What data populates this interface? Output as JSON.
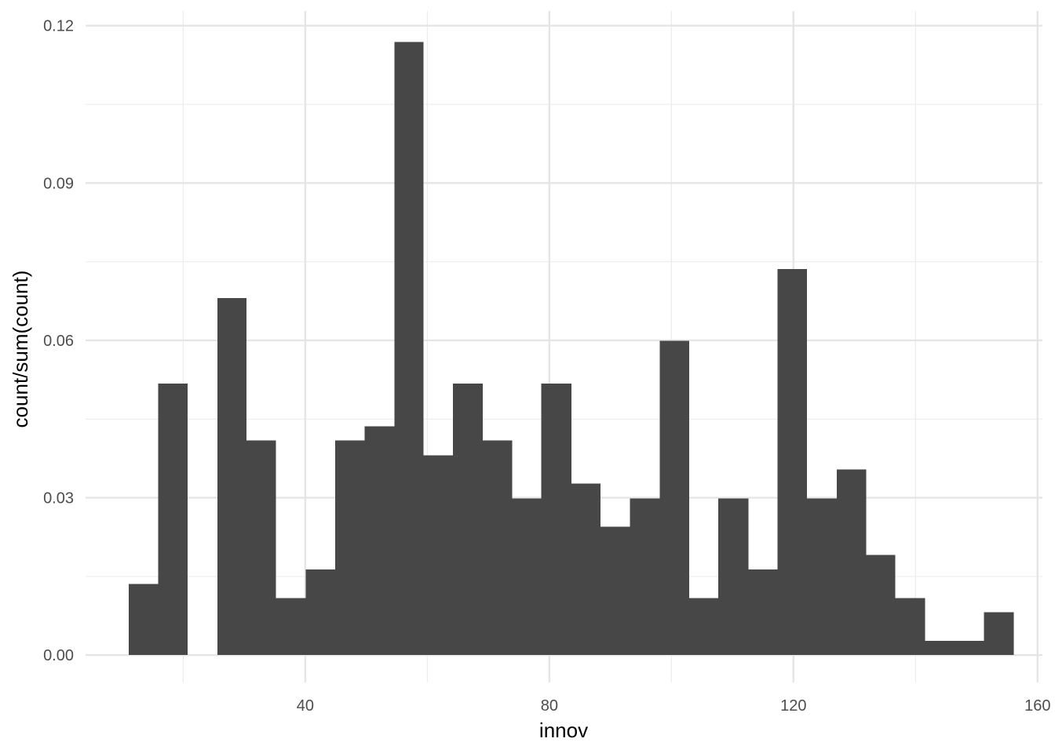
{
  "chart_data": {
    "type": "bar",
    "title": "",
    "xlabel": "innov",
    "ylabel": "count/sum(count)",
    "xlim": [
      4.0,
      160.8
    ],
    "ylim": [
      -0.0052,
      0.1228
    ],
    "grid": true,
    "x_ticks": [
      40,
      80,
      120,
      160
    ],
    "x_tick_labels": [
      "40",
      "80",
      "120",
      "160"
    ],
    "x_minor_ticks": [
      20,
      60,
      100,
      140
    ],
    "y_ticks": [
      0.0,
      0.03,
      0.06,
      0.09,
      0.12
    ],
    "y_tick_labels": [
      "0.00",
      "0.03",
      "0.06",
      "0.09",
      "0.12"
    ],
    "y_minor_ticks": [
      0.015,
      0.045,
      0.075,
      0.105
    ],
    "bar_color": "#474747",
    "bins": [
      {
        "xmin": 11.1,
        "xmax": 15.9,
        "value": 0.0136
      },
      {
        "xmin": 15.9,
        "xmax": 20.7,
        "value": 0.0518
      },
      {
        "xmin": 20.7,
        "xmax": 25.6,
        "value": 0.0
      },
      {
        "xmin": 25.6,
        "xmax": 30.4,
        "value": 0.0681
      },
      {
        "xmin": 30.4,
        "xmax": 35.2,
        "value": 0.0409
      },
      {
        "xmin": 35.2,
        "xmax": 40.1,
        "value": 0.0109
      },
      {
        "xmin": 40.1,
        "xmax": 44.9,
        "value": 0.0163
      },
      {
        "xmin": 44.9,
        "xmax": 49.7,
        "value": 0.0409
      },
      {
        "xmin": 49.7,
        "xmax": 54.6,
        "value": 0.0436
      },
      {
        "xmin": 54.6,
        "xmax": 59.4,
        "value": 0.1169
      },
      {
        "xmin": 59.4,
        "xmax": 64.2,
        "value": 0.0381
      },
      {
        "xmin": 64.2,
        "xmax": 69.1,
        "value": 0.0518
      },
      {
        "xmin": 69.1,
        "xmax": 73.9,
        "value": 0.0409
      },
      {
        "xmin": 73.9,
        "xmax": 78.7,
        "value": 0.0299
      },
      {
        "xmin": 78.7,
        "xmax": 83.6,
        "value": 0.0518
      },
      {
        "xmin": 83.6,
        "xmax": 88.4,
        "value": 0.0327
      },
      {
        "xmin": 88.4,
        "xmax": 93.2,
        "value": 0.0245
      },
      {
        "xmin": 93.2,
        "xmax": 98.1,
        "value": 0.0299
      },
      {
        "xmin": 98.1,
        "xmax": 102.9,
        "value": 0.0599
      },
      {
        "xmin": 102.9,
        "xmax": 107.7,
        "value": 0.0109
      },
      {
        "xmin": 107.7,
        "xmax": 112.6,
        "value": 0.0299
      },
      {
        "xmin": 112.6,
        "xmax": 117.4,
        "value": 0.0163
      },
      {
        "xmin": 117.4,
        "xmax": 122.2,
        "value": 0.0736
      },
      {
        "xmin": 122.2,
        "xmax": 127.1,
        "value": 0.0299
      },
      {
        "xmin": 127.1,
        "xmax": 131.9,
        "value": 0.0354
      },
      {
        "xmin": 131.9,
        "xmax": 136.7,
        "value": 0.0191
      },
      {
        "xmin": 136.7,
        "xmax": 141.6,
        "value": 0.0109
      },
      {
        "xmin": 141.6,
        "xmax": 146.4,
        "value": 0.0027
      },
      {
        "xmin": 146.4,
        "xmax": 151.2,
        "value": 0.0027
      },
      {
        "xmin": 151.2,
        "xmax": 156.1,
        "value": 0.0082
      }
    ]
  }
}
